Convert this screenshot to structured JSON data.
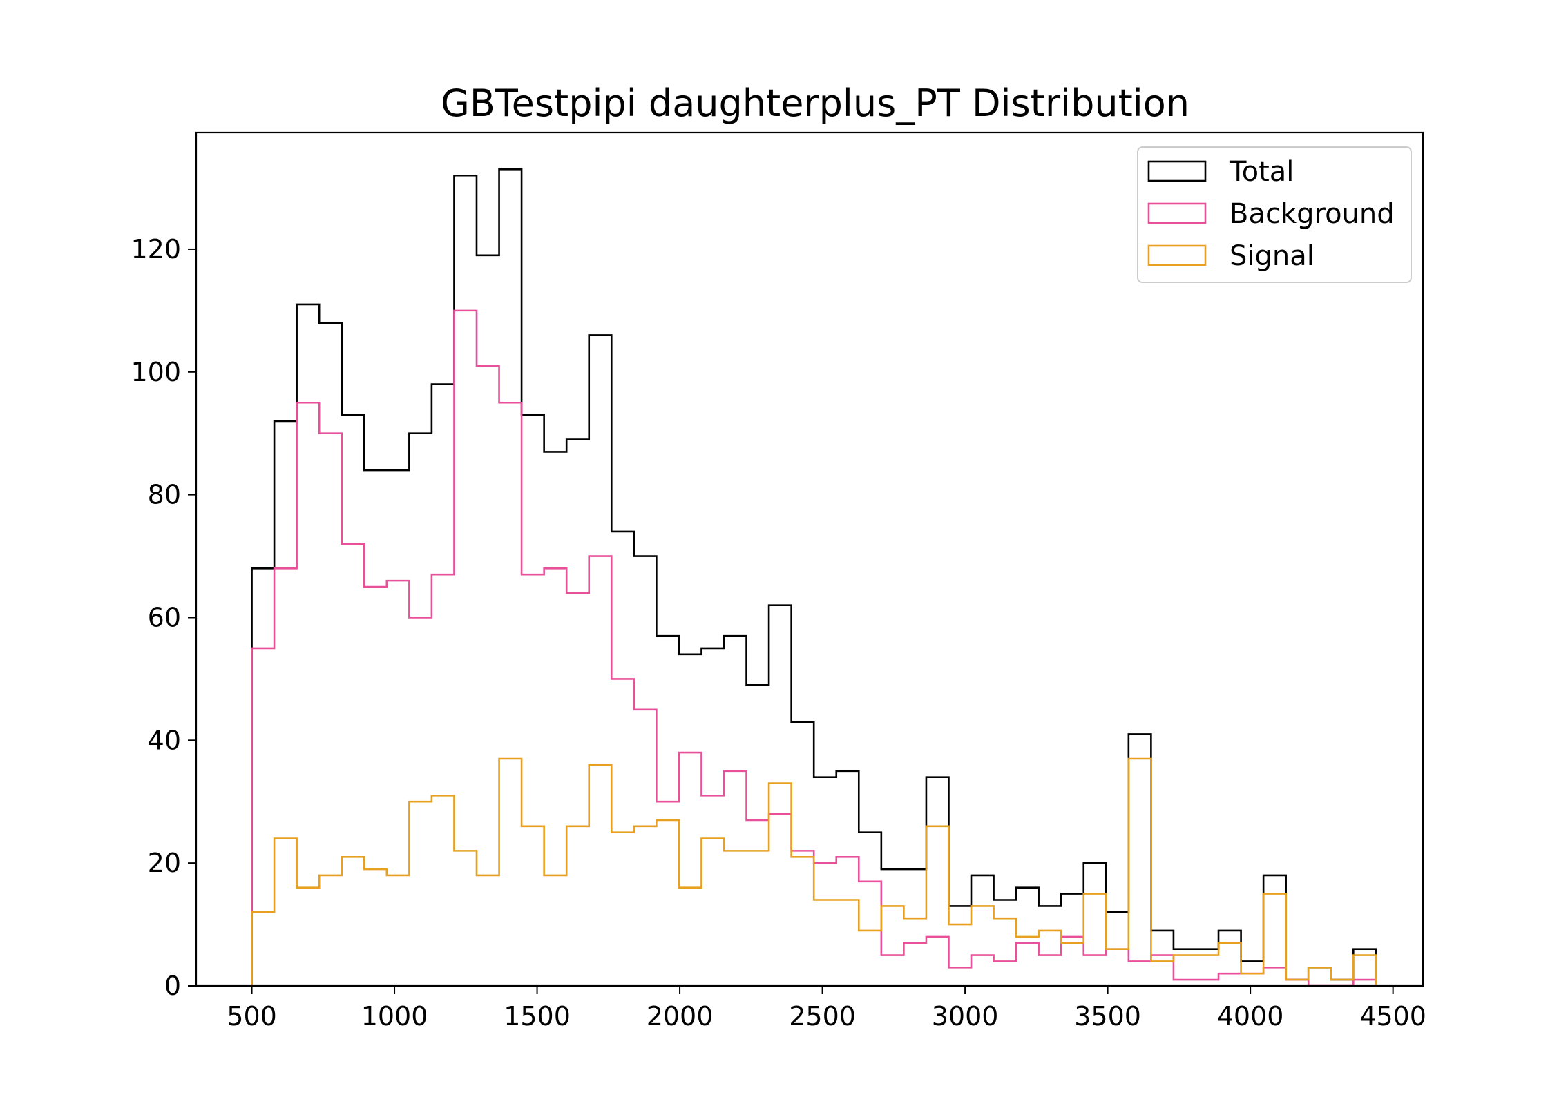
{
  "chart_data": {
    "type": "step-histogram",
    "title": "GBTestpipi daughterplus_PT Distribution",
    "xlabel": "",
    "ylabel": "",
    "xlim": [
      305,
      4605
    ],
    "ylim": [
      0,
      139
    ],
    "x_ticks": [
      500,
      1000,
      1500,
      2000,
      2500,
      3000,
      3500,
      4000,
      4500
    ],
    "y_ticks": [
      0,
      20,
      40,
      60,
      80,
      100,
      120
    ],
    "grid": false,
    "legend_position": "top-right",
    "bin_start": 500,
    "bin_width": 78.8,
    "series": [
      {
        "name": "Total",
        "color": "#000000",
        "values": [
          68,
          92,
          111,
          108,
          93,
          84,
          84,
          90,
          98,
          132,
          119,
          133,
          93,
          87,
          89,
          106,
          74,
          70,
          57,
          54,
          55,
          57,
          49,
          62,
          43,
          34,
          35,
          25,
          19,
          19,
          34,
          13,
          18,
          14,
          16,
          13,
          15,
          20,
          12,
          41,
          9,
          6,
          6,
          9,
          4,
          18,
          1,
          3,
          1,
          6
        ]
      },
      {
        "name": "Background",
        "color": "#e8519a",
        "values": [
          55,
          68,
          95,
          90,
          72,
          65,
          66,
          60,
          67,
          110,
          101,
          95,
          67,
          68,
          64,
          70,
          50,
          45,
          30,
          38,
          31,
          35,
          27,
          28,
          22,
          20,
          21,
          17,
          5,
          7,
          8,
          3,
          5,
          4,
          7,
          5,
          8,
          5,
          6,
          4,
          5,
          1,
          1,
          2,
          2,
          3,
          1,
          0,
          0,
          1
        ]
      },
      {
        "name": "Signal",
        "color": "#e8a020",
        "values": [
          12,
          24,
          16,
          18,
          21,
          19,
          18,
          30,
          31,
          22,
          18,
          37,
          26,
          18,
          26,
          36,
          25,
          26,
          27,
          16,
          24,
          22,
          22,
          33,
          21,
          14,
          14,
          9,
          13,
          11,
          26,
          10,
          13,
          11,
          8,
          9,
          7,
          15,
          6,
          37,
          4,
          5,
          5,
          7,
          2,
          15,
          1,
          3,
          1,
          5
        ]
      }
    ]
  }
}
